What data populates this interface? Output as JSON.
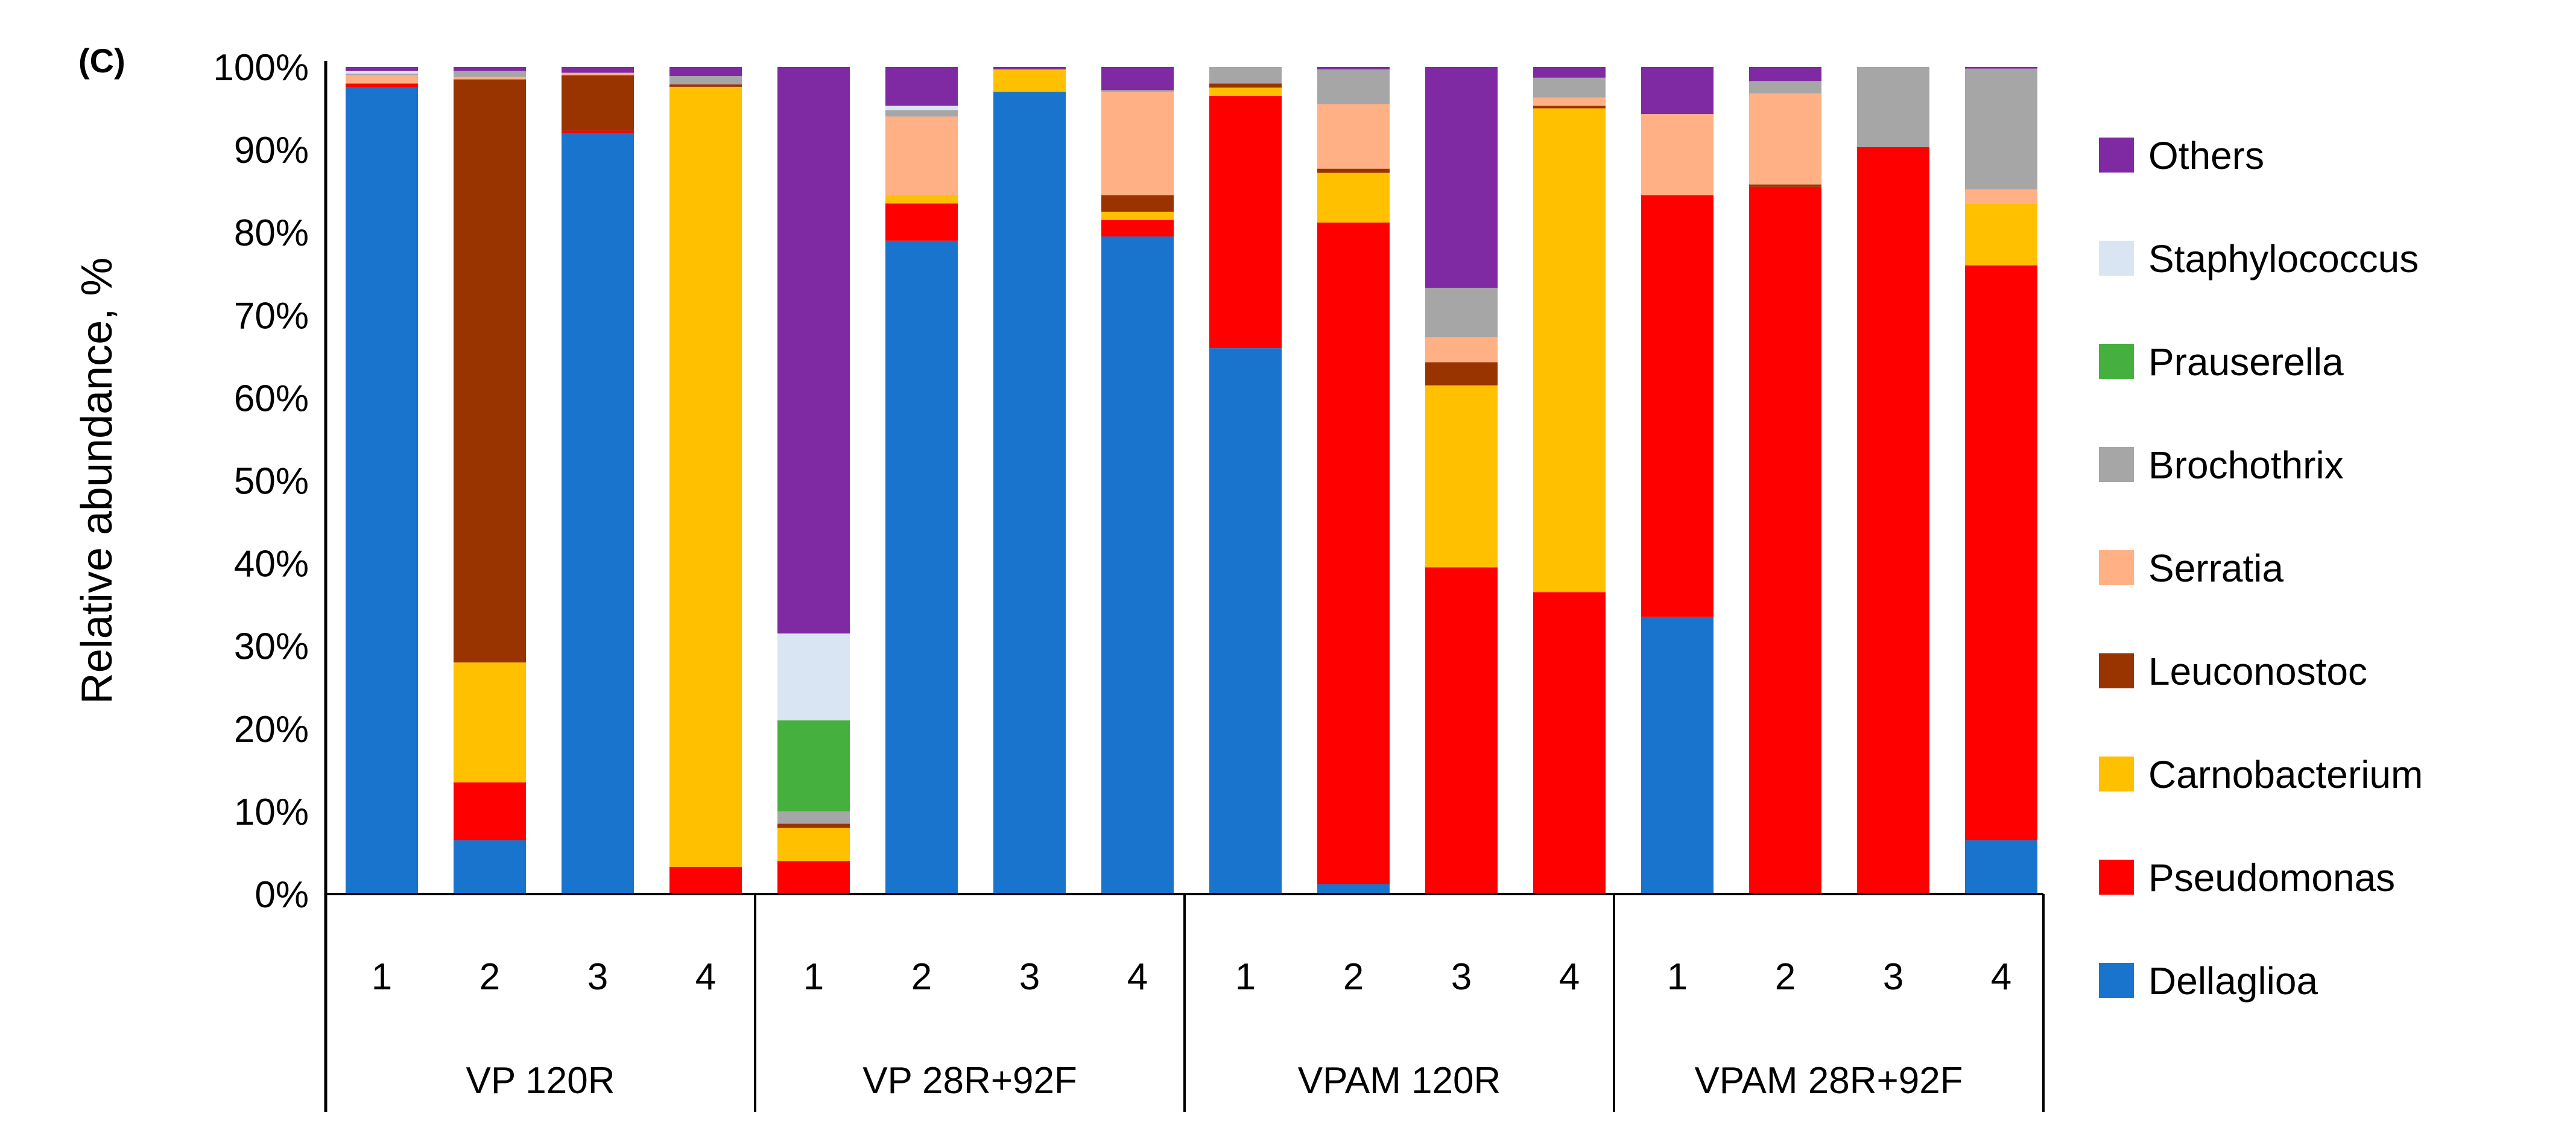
{
  "chart_data": {
    "type": "bar",
    "stacked": true,
    "panel_label": "(C)",
    "ylabel": "Relative abundance, %",
    "ylim": [
      0,
      100
    ],
    "yticks": [
      "0%",
      "10%",
      "20%",
      "30%",
      "40%",
      "50%",
      "60%",
      "70%",
      "80%",
      "90%",
      "100%"
    ],
    "groups": [
      "VP 120R",
      "VP 28R+92F",
      "VPAM 120R",
      "VPAM 28R+92F"
    ],
    "categories": [
      "1",
      "2",
      "3",
      "4",
      "1",
      "2",
      "3",
      "4",
      "1",
      "2",
      "3",
      "4",
      "1",
      "2",
      "3",
      "4"
    ],
    "legend_position": "right",
    "series": [
      {
        "name": "Dellaglioa",
        "color": "#1874CD",
        "values": [
          97.5,
          6.5,
          92,
          0,
          0,
          79,
          97,
          79.5,
          66,
          1.2,
          0,
          0,
          33.5,
          0,
          0,
          6.5
        ]
      },
      {
        "name": "Pseudomonas",
        "color": "#FF0000",
        "values": [
          0.5,
          7,
          0.3,
          3.3,
          4,
          4.5,
          0,
          2,
          30.5,
          80,
          39.5,
          36.5,
          51,
          85.5,
          90.3,
          69.5
        ]
      },
      {
        "name": "Carnobacterium",
        "color": "#FFC000",
        "values": [
          0,
          14.5,
          0,
          94.3,
          4,
          1,
          2.7,
          1,
          1,
          6,
          22,
          58.5,
          0,
          0,
          0,
          7.5
        ]
      },
      {
        "name": "Leuconostoc",
        "color": "#993300",
        "values": [
          0,
          70.5,
          6.7,
          0.3,
          0.5,
          0,
          0,
          2,
          0.5,
          0.5,
          2.8,
          0.3,
          0,
          0.3,
          0,
          0
        ]
      },
      {
        "name": "Serratia",
        "color": "#FFB084",
        "values": [
          1,
          0.3,
          0.3,
          0,
          0,
          9.5,
          0,
          12.5,
          0,
          7.8,
          3,
          1,
          9.8,
          11,
          0,
          1.7
        ]
      },
      {
        "name": "Brochothrix",
        "color": "#A6A6A6",
        "values": [
          0.2,
          0.7,
          0,
          1,
          1.5,
          0.8,
          0,
          0.2,
          2,
          4.2,
          6,
          2.4,
          0,
          1.5,
          9.7,
          14.6
        ]
      },
      {
        "name": "Prauserella",
        "color": "#46B03E",
        "values": [
          0,
          0,
          0,
          0,
          11,
          0,
          0,
          0,
          0,
          0,
          0,
          0,
          0,
          0,
          0,
          0
        ]
      },
      {
        "name": "Staphylococcus",
        "color": "#DAE5F4",
        "values": [
          0.3,
          0,
          0,
          0,
          10.5,
          0.5,
          0,
          0,
          0,
          0,
          0,
          0,
          0,
          0,
          0,
          0
        ]
      },
      {
        "name": "Others",
        "color": "#7F2AA2",
        "values": [
          0.5,
          0.5,
          0.7,
          1.1,
          68.5,
          4.7,
          0.3,
          2.8,
          0,
          0.3,
          26.7,
          1.3,
          5.7,
          1.7,
          0,
          0.2
        ]
      }
    ]
  }
}
